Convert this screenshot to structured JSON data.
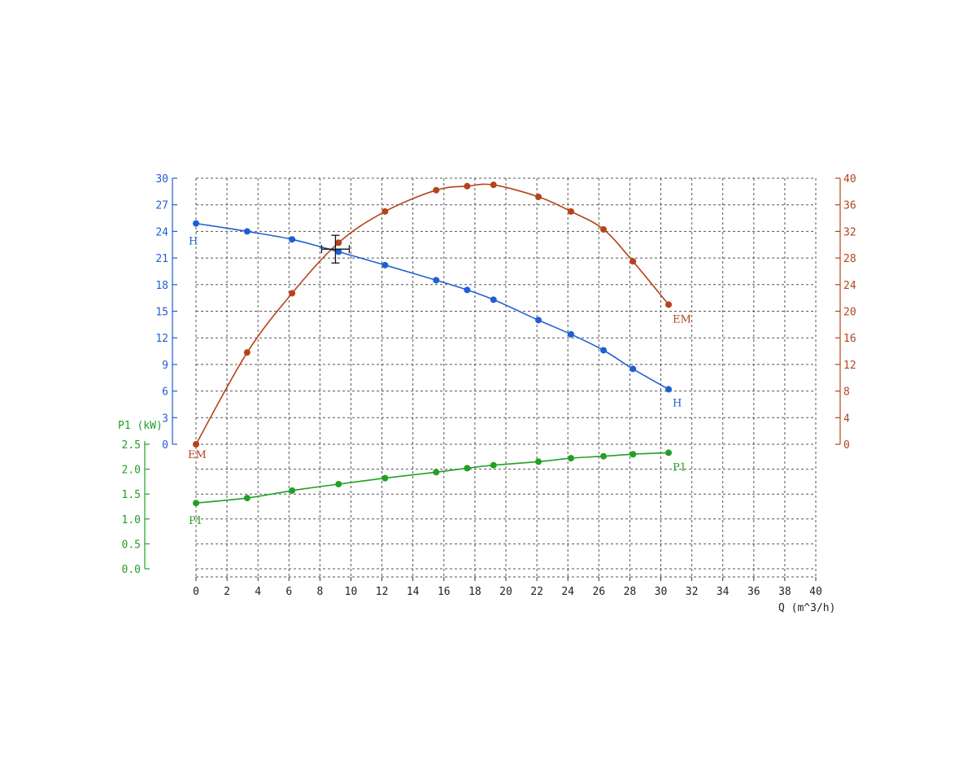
{
  "chart_data": {
    "type": "line",
    "x_axis": {
      "label": "Q (m^3/h)",
      "range": [
        0,
        40
      ],
      "ticks": [
        "0",
        "2",
        "4",
        "6",
        "8",
        "10",
        "12",
        "14",
        "16",
        "18",
        "20",
        "22",
        "24",
        "26",
        "28",
        "30",
        "32",
        "34",
        "36",
        "38",
        "40"
      ]
    },
    "y_axes": {
      "head": {
        "label": "",
        "range": [
          0,
          30
        ],
        "ticks": [
          "0",
          "3",
          "6",
          "9",
          "12",
          "15",
          "18",
          "21",
          "24",
          "27",
          "30"
        ],
        "color": "#1f5fd6"
      },
      "efficiency": {
        "label": "",
        "range": [
          0,
          40
        ],
        "ticks": [
          "0",
          "4",
          "8",
          "12",
          "16",
          "20",
          "24",
          "28",
          "32",
          "36",
          "40"
        ],
        "color": "#b5441a"
      },
      "power": {
        "label": "P1 (kW)",
        "range": [
          0.0,
          2.5
        ],
        "ticks": [
          "0.0",
          "0.5",
          "1.0",
          "1.5",
          "2.0",
          "2.5"
        ],
        "color": "#22a022"
      }
    },
    "grid": true,
    "series": [
      {
        "name": "H",
        "axis": "head",
        "color": "#1f5fd6",
        "x": [
          0,
          3.3,
          6.2,
          9.2,
          12.2,
          15.5,
          17.5,
          19.2,
          22.1,
          24.2,
          26.3,
          28.2,
          30.5
        ],
        "y": [
          24.9,
          24.0,
          23.1,
          21.7,
          20.2,
          18.5,
          17.4,
          16.3,
          14.0,
          12.4,
          10.6,
          8.5,
          6.2
        ],
        "end_labels": [
          "H",
          "H"
        ]
      },
      {
        "name": "EM",
        "axis": "efficiency",
        "color": "#b5441a",
        "x": [
          0,
          3.3,
          6.2,
          9.2,
          12.2,
          15.5,
          17.5,
          19.2,
          22.1,
          24.2,
          26.3,
          28.2,
          30.5
        ],
        "y": [
          0,
          13.8,
          22.7,
          30.3,
          35.0,
          38.2,
          38.8,
          39.0,
          37.2,
          35.0,
          32.3,
          27.5,
          21.0
        ],
        "end_labels": [
          "EM",
          "EM"
        ]
      },
      {
        "name": "P1",
        "axis": "power",
        "color": "#22a022",
        "x": [
          0,
          3.3,
          6.2,
          9.2,
          12.2,
          15.5,
          17.5,
          19.2,
          22.1,
          24.2,
          26.3,
          28.2,
          30.5
        ],
        "y": [
          1.32,
          1.42,
          1.57,
          1.7,
          1.82,
          1.94,
          2.02,
          2.08,
          2.15,
          2.22,
          2.26,
          2.3,
          2.33
        ],
        "end_labels": [
          "P1",
          "P1"
        ]
      }
    ],
    "duty_point": {
      "x": 9.0,
      "y": 22.0,
      "axis": "head"
    }
  }
}
